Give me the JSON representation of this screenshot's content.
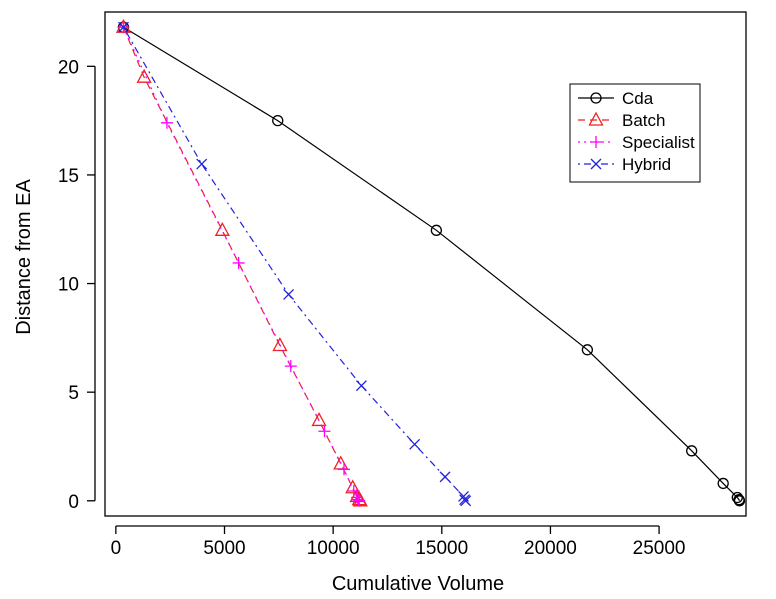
{
  "chart_data": {
    "type": "line",
    "xlabel": "Cumulative Volume",
    "ylabel": "Distance from EA",
    "xlim": [
      -500,
      29000
    ],
    "ylim": [
      -0.7,
      22.5
    ],
    "x_ticks": [
      0,
      5000,
      10000,
      15000,
      20000,
      25000
    ],
    "y_ticks": [
      0,
      5,
      10,
      15,
      20
    ],
    "x_tick_labels": [
      "0",
      "5000",
      "10000",
      "15000",
      "20000",
      "25000"
    ],
    "y_tick_labels": [
      "0",
      "5",
      "10",
      "15",
      "20"
    ],
    "legend_position": "top-right",
    "series": [
      {
        "name": "Cda",
        "color": "#000000",
        "marker": "circle",
        "dash": "solid",
        "x": [
          350,
          7450,
          14750,
          21700,
          26500,
          27950,
          28600,
          28680,
          28700
        ],
        "y": [
          21.8,
          17.5,
          12.45,
          6.95,
          2.3,
          0.8,
          0.15,
          0.05,
          0.0
        ]
      },
      {
        "name": "Batch",
        "color": "#ee2222",
        "marker": "triangle",
        "dash": "dashed",
        "x": [
          350,
          1300,
          4900,
          7550,
          9350,
          10350,
          10900,
          11100,
          11200,
          11250
        ],
        "y": [
          21.8,
          19.5,
          12.45,
          7.15,
          3.7,
          1.7,
          0.6,
          0.2,
          0.05,
          0.0
        ]
      },
      {
        "name": "Specialist",
        "color": "#ff00ff",
        "marker": "plus",
        "dash": "dotted",
        "x": [
          350,
          2350,
          5650,
          8050,
          9600,
          10500,
          10950,
          11100,
          11150,
          11200
        ],
        "y": [
          21.8,
          17.4,
          10.95,
          6.2,
          3.2,
          1.45,
          0.45,
          0.15,
          0.05,
          0.0
        ]
      },
      {
        "name": "Hybrid",
        "color": "#2222dd",
        "marker": "x",
        "dash": "dotdash",
        "x": [
          350,
          3950,
          7950,
          11300,
          13750,
          15150,
          16000,
          16050,
          16100
        ],
        "y": [
          21.8,
          15.5,
          9.5,
          5.3,
          2.6,
          1.1,
          0.2,
          0.05,
          0.0
        ]
      }
    ]
  }
}
